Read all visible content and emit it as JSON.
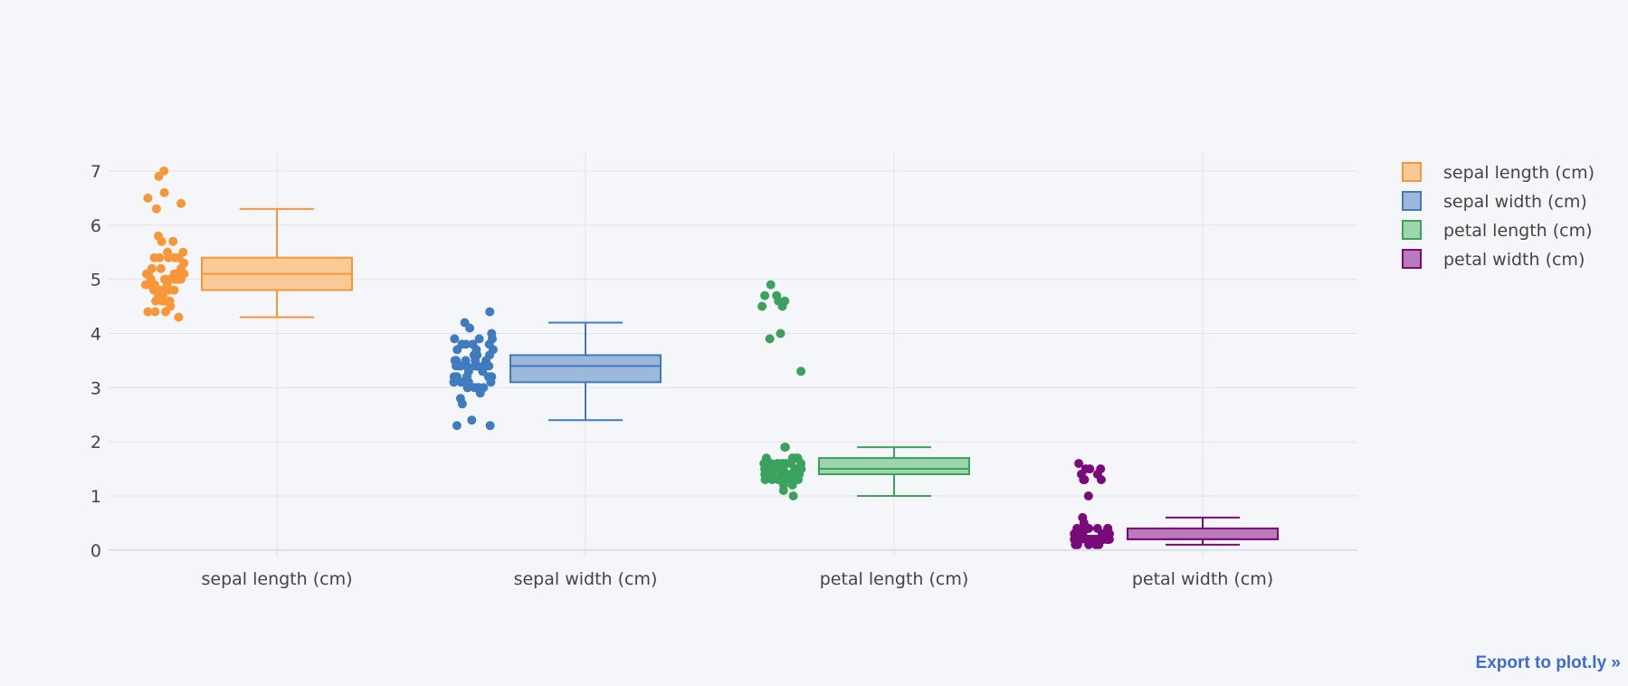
{
  "export_link": "Export to plot.ly »",
  "colors": {
    "background": "#f5f6f9",
    "grid": "#e2e4ea",
    "zeroline": "#dcdfe6",
    "tick_text": "#444444",
    "export_link": "#3d6bcf"
  },
  "chart_data": {
    "type": "box",
    "title": "",
    "xlabel": "",
    "ylabel": "",
    "ylim": [
      -0.12,
      7.35
    ],
    "y_ticks": [
      0,
      1,
      2,
      3,
      4,
      5,
      6,
      7
    ],
    "grid": true,
    "boxpoints": "all",
    "legend_position": "top-right",
    "categories": [
      "sepal length (cm)",
      "sepal width (cm)",
      "petal length (cm)",
      "petal width (cm)"
    ],
    "series": [
      {
        "name": "sepal length (cm)",
        "color": "#f7973a",
        "fill": "#f9c996",
        "box": {
          "lower_fence": 4.3,
          "q1": 4.8,
          "median": 5.1,
          "q3": 5.4,
          "upper_fence": 6.3
        },
        "points": [
          5.1,
          4.9,
          4.7,
          4.6,
          5.0,
          5.4,
          4.6,
          5.0,
          4.4,
          4.9,
          5.4,
          4.8,
          4.8,
          4.3,
          5.8,
          5.7,
          5.4,
          5.1,
          5.7,
          5.1,
          5.4,
          5.1,
          4.6,
          5.1,
          4.8,
          5.0,
          5.0,
          5.2,
          5.2,
          4.7,
          4.8,
          5.4,
          5.2,
          5.5,
          4.9,
          5.0,
          5.5,
          4.9,
          4.4,
          5.1,
          5.0,
          4.5,
          4.4,
          5.0,
          5.1,
          4.8,
          5.1,
          4.6,
          5.3,
          5.0,
          7.0,
          6.9,
          6.6,
          6.5,
          6.4,
          6.3
        ]
      },
      {
        "name": "sepal width (cm)",
        "color": "#3f7bbf",
        "fill": "#9cb9dc",
        "box": {
          "lower_fence": 2.4,
          "q1": 3.1,
          "median": 3.4,
          "q3": 3.6,
          "upper_fence": 4.2
        },
        "points": [
          3.5,
          3.0,
          3.2,
          3.1,
          3.6,
          3.9,
          3.4,
          3.4,
          2.9,
          3.1,
          3.7,
          3.4,
          3.0,
          3.0,
          4.0,
          4.4,
          3.9,
          3.5,
          3.8,
          3.8,
          3.4,
          3.7,
          3.6,
          3.3,
          3.4,
          3.0,
          3.4,
          3.5,
          3.4,
          3.2,
          3.1,
          3.4,
          4.1,
          4.2,
          3.1,
          3.2,
          3.5,
          3.6,
          3.0,
          3.4,
          3.5,
          2.3,
          3.2,
          3.5,
          3.8,
          3.0,
          3.8,
          3.2,
          3.7,
          3.3,
          2.3,
          2.4,
          2.7,
          2.8,
          3.9,
          3.2
        ]
      },
      {
        "name": "petal length (cm)",
        "color": "#3aa25c",
        "fill": "#9dd6ad",
        "box": {
          "lower_fence": 1.0,
          "q1": 1.4,
          "median": 1.5,
          "q3": 1.7,
          "upper_fence": 1.9
        },
        "points": [
          1.4,
          1.4,
          1.3,
          1.5,
          1.4,
          1.7,
          1.4,
          1.5,
          1.4,
          1.5,
          1.5,
          1.6,
          1.4,
          1.1,
          1.2,
          1.5,
          1.3,
          1.4,
          1.7,
          1.5,
          1.7,
          1.5,
          1.0,
          1.7,
          1.9,
          1.6,
          1.6,
          1.5,
          1.4,
          1.6,
          1.6,
          1.5,
          1.5,
          1.4,
          1.5,
          1.2,
          1.3,
          1.4,
          1.3,
          1.5,
          1.3,
          1.3,
          1.3,
          1.6,
          1.9,
          1.4,
          1.6,
          1.4,
          1.5,
          1.4,
          4.7,
          4.5,
          4.9,
          4.0,
          4.6,
          4.5,
          4.7,
          3.3,
          4.6,
          3.9
        ]
      },
      {
        "name": "petal width (cm)",
        "color": "#7a0a7a",
        "fill": "#bb7bbb",
        "box": {
          "lower_fence": 0.1,
          "q1": 0.2,
          "median": 0.2,
          "q3": 0.4,
          "upper_fence": 0.6
        },
        "points": [
          0.2,
          0.2,
          0.2,
          0.2,
          0.2,
          0.4,
          0.3,
          0.2,
          0.2,
          0.1,
          0.2,
          0.2,
          0.1,
          0.1,
          0.2,
          0.4,
          0.4,
          0.3,
          0.3,
          0.3,
          0.2,
          0.4,
          0.2,
          0.5,
          0.2,
          0.2,
          0.4,
          0.2,
          0.2,
          0.2,
          0.2,
          0.4,
          0.1,
          0.2,
          0.2,
          0.2,
          0.2,
          0.1,
          0.2,
          0.2,
          0.3,
          0.3,
          0.2,
          0.6,
          0.4,
          0.3,
          0.2,
          0.2,
          0.2,
          0.2,
          1.4,
          1.5,
          1.5,
          1.3,
          1.5,
          1.3,
          1.6,
          1.0,
          1.3,
          1.4
        ]
      }
    ]
  }
}
